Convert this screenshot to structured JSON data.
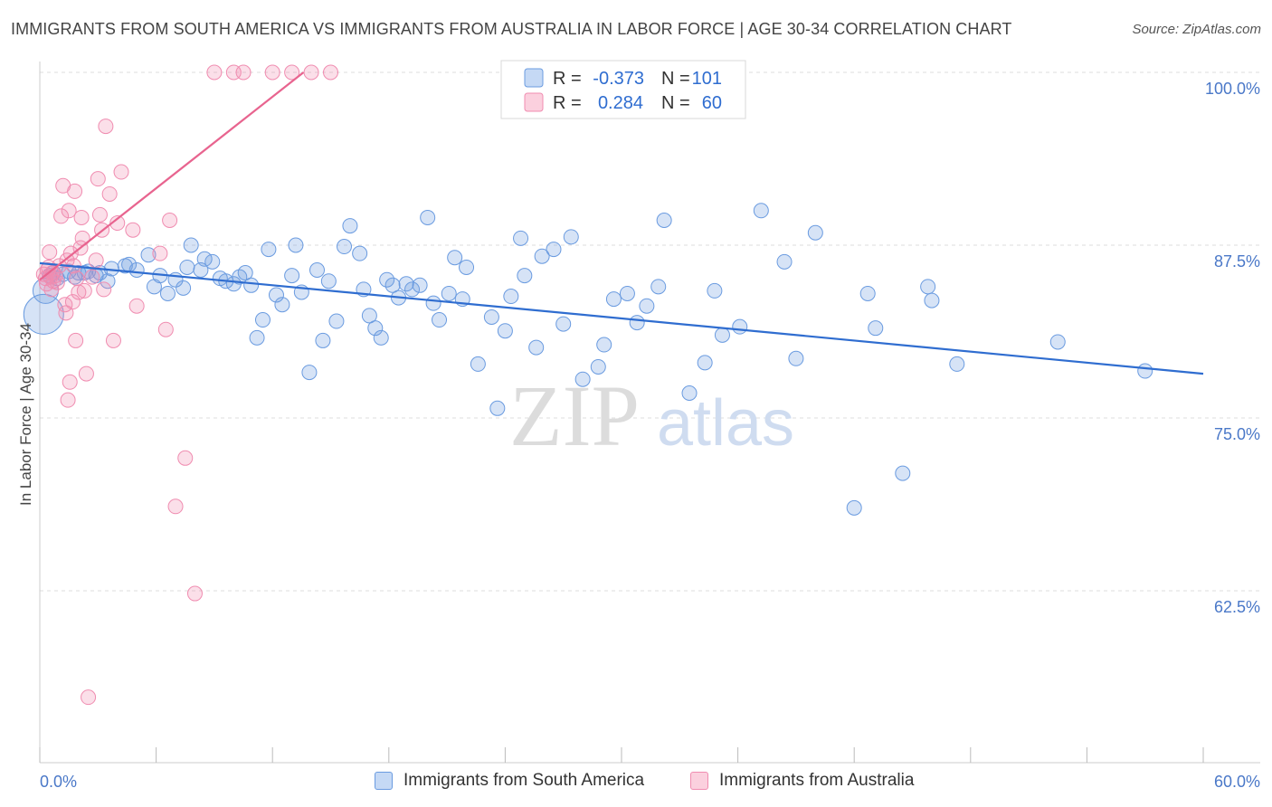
{
  "header": {
    "title": "IMMIGRANTS FROM SOUTH AMERICA VS IMMIGRANTS FROM AUSTRALIA IN LABOR FORCE | AGE 30-34 CORRELATION CHART",
    "source": "Source: ZipAtlas.com"
  },
  "watermark": {
    "zip": "ZIP",
    "atlas": "atlas"
  },
  "chart_data": {
    "type": "scatter",
    "ylabel": "In Labor Force | Age 30-34",
    "xlim": [
      0,
      60
    ],
    "ylim": [
      50,
      101
    ],
    "x_tick_labels": [
      "0.0%",
      "60.0%"
    ],
    "y_ticks": [
      {
        "value": 100,
        "label": "100.0%"
      },
      {
        "value": 87.5,
        "label": "87.5%"
      },
      {
        "value": 75,
        "label": "75.0%"
      },
      {
        "value": 62.5,
        "label": "62.5%"
      }
    ],
    "legend": {
      "r_label": "R =",
      "n_label": "N =",
      "entries": [
        {
          "r": "-0.373",
          "n": "101"
        },
        {
          "r": "0.284",
          "n": "60"
        }
      ]
    },
    "series": [
      {
        "name": "Immigrants from South America",
        "color": "#6a9be0",
        "line_color": "#2f6dd0",
        "trend": {
          "x0": 0,
          "y0": 86.2,
          "x1": 60,
          "y1": 78.2
        },
        "points": [
          [
            0.2,
            82.5,
            3
          ],
          [
            0.3,
            84.2,
            2
          ],
          [
            0.5,
            85.3,
            1
          ],
          [
            0.7,
            85.5,
            1
          ],
          [
            0.9,
            85.1,
            1
          ],
          [
            1.2,
            85.4,
            1
          ],
          [
            1.5,
            85.6,
            1
          ],
          [
            1.8,
            85.2,
            1
          ],
          [
            2.0,
            85.5,
            1
          ],
          [
            2.3,
            85.5,
            1
          ],
          [
            2.5,
            85.6,
            1
          ],
          [
            2.9,
            85.3,
            1
          ],
          [
            3.1,
            85.5,
            1
          ],
          [
            3.5,
            84.9,
            1
          ],
          [
            3.7,
            85.8,
            1
          ],
          [
            4.4,
            86.0,
            1
          ],
          [
            4.6,
            86.1,
            1
          ],
          [
            5.0,
            85.7,
            1
          ],
          [
            5.6,
            86.8,
            1
          ],
          [
            5.9,
            84.5,
            1
          ],
          [
            6.2,
            85.3,
            1
          ],
          [
            6.6,
            84.0,
            1
          ],
          [
            7.0,
            85.0,
            1
          ],
          [
            7.4,
            84.4,
            1
          ],
          [
            7.6,
            85.9,
            1
          ],
          [
            7.8,
            87.5,
            1
          ],
          [
            8.3,
            85.7,
            1
          ],
          [
            8.5,
            86.5,
            1
          ],
          [
            8.9,
            86.3,
            1
          ],
          [
            9.3,
            85.1,
            1
          ],
          [
            9.6,
            84.9,
            1
          ],
          [
            10.0,
            84.7,
            1
          ],
          [
            10.3,
            85.2,
            1
          ],
          [
            10.6,
            85.5,
            1
          ],
          [
            10.9,
            84.6,
            1
          ],
          [
            11.2,
            80.8,
            1
          ],
          [
            11.5,
            82.1,
            1
          ],
          [
            11.8,
            87.2,
            1
          ],
          [
            12.2,
            83.9,
            1
          ],
          [
            12.5,
            83.2,
            1
          ],
          [
            13.0,
            85.3,
            1
          ],
          [
            13.2,
            87.5,
            1
          ],
          [
            13.5,
            84.1,
            1
          ],
          [
            13.9,
            78.3,
            1
          ],
          [
            14.3,
            85.7,
            1
          ],
          [
            14.6,
            80.6,
            1
          ],
          [
            14.9,
            84.9,
            1
          ],
          [
            15.3,
            82.0,
            1
          ],
          [
            15.7,
            87.4,
            1
          ],
          [
            16.0,
            88.9,
            1
          ],
          [
            16.5,
            86.9,
            1
          ],
          [
            16.7,
            84.3,
            1
          ],
          [
            17.0,
            82.4,
            1
          ],
          [
            17.3,
            81.5,
            1
          ],
          [
            17.6,
            80.8,
            1
          ],
          [
            17.9,
            85.0,
            1
          ],
          [
            18.2,
            84.6,
            1
          ],
          [
            18.5,
            83.7,
            1
          ],
          [
            18.9,
            84.7,
            1
          ],
          [
            19.2,
            84.3,
            1
          ],
          [
            19.6,
            84.6,
            1
          ],
          [
            20.0,
            89.5,
            1
          ],
          [
            20.3,
            83.3,
            1
          ],
          [
            20.6,
            82.1,
            1
          ],
          [
            21.1,
            84.0,
            1
          ],
          [
            21.4,
            86.6,
            1
          ],
          [
            21.8,
            83.6,
            1
          ],
          [
            22.0,
            85.9,
            1
          ],
          [
            22.6,
            78.9,
            1
          ],
          [
            23.3,
            82.3,
            1
          ],
          [
            23.6,
            75.7,
            1
          ],
          [
            24.0,
            81.3,
            1
          ],
          [
            24.3,
            83.8,
            1
          ],
          [
            24.8,
            88.0,
            1
          ],
          [
            25.0,
            85.3,
            1
          ],
          [
            25.6,
            80.1,
            1
          ],
          [
            25.9,
            86.7,
            1
          ],
          [
            26.5,
            87.2,
            1
          ],
          [
            27.0,
            81.8,
            1
          ],
          [
            27.4,
            88.1,
            1
          ],
          [
            28.0,
            77.8,
            1
          ],
          [
            28.8,
            78.7,
            1
          ],
          [
            29.1,
            80.3,
            1
          ],
          [
            29.6,
            83.6,
            1
          ],
          [
            30.3,
            84.0,
            1
          ],
          [
            30.8,
            81.9,
            1
          ],
          [
            31.3,
            83.1,
            1
          ],
          [
            31.9,
            84.5,
            1
          ],
          [
            32.2,
            89.3,
            1
          ],
          [
            33.5,
            76.8,
            1
          ],
          [
            34.3,
            79.0,
            1
          ],
          [
            34.8,
            84.2,
            1
          ],
          [
            35.2,
            81.0,
            1
          ],
          [
            36.1,
            81.6,
            1
          ],
          [
            37.2,
            90.0,
            1
          ],
          [
            38.4,
            86.3,
            1
          ],
          [
            39.0,
            79.3,
            1
          ],
          [
            40.0,
            88.4,
            1
          ],
          [
            42.0,
            68.5,
            1
          ],
          [
            42.7,
            84.0,
            1
          ],
          [
            43.1,
            81.5,
            1
          ],
          [
            44.5,
            71.0,
            1
          ],
          [
            45.8,
            84.5,
            1
          ],
          [
            46.0,
            83.5,
            1
          ],
          [
            47.3,
            78.9,
            1
          ],
          [
            52.5,
            80.5,
            1
          ],
          [
            57.0,
            78.4,
            1
          ]
        ]
      },
      {
        "name": "Immigrants from Australia",
        "color": "#f08cb0",
        "line_color": "#e8648f",
        "trend": {
          "x0": 0,
          "y0": 85.0,
          "x1": 13.6,
          "y1": 100.0
        },
        "points": [
          [
            0.2,
            85.4,
            1
          ],
          [
            0.3,
            85.1,
            1
          ],
          [
            0.35,
            84.7,
            1
          ],
          [
            0.4,
            85.7,
            1
          ],
          [
            0.45,
            85.9,
            1
          ],
          [
            0.5,
            87.0,
            1
          ],
          [
            0.55,
            85.2,
            1
          ],
          [
            0.6,
            84.3,
            1
          ],
          [
            0.65,
            85.5,
            1
          ],
          [
            0.7,
            84.9,
            1
          ],
          [
            0.8,
            85.3,
            1
          ],
          [
            0.9,
            84.8,
            1
          ],
          [
            1.0,
            86.0,
            1
          ],
          [
            1.1,
            89.6,
            1
          ],
          [
            1.2,
            91.8,
            1
          ],
          [
            1.3,
            83.2,
            1
          ],
          [
            1.35,
            82.6,
            1
          ],
          [
            1.4,
            86.4,
            1
          ],
          [
            1.45,
            76.3,
            1
          ],
          [
            1.5,
            90.0,
            1
          ],
          [
            1.55,
            77.6,
            1
          ],
          [
            1.6,
            86.9,
            1
          ],
          [
            1.7,
            83.4,
            1
          ],
          [
            1.75,
            86.0,
            1
          ],
          [
            1.8,
            91.4,
            1
          ],
          [
            1.85,
            80.6,
            1
          ],
          [
            1.9,
            85.1,
            1
          ],
          [
            2.0,
            84.1,
            1
          ],
          [
            2.1,
            87.3,
            1
          ],
          [
            2.15,
            89.5,
            1
          ],
          [
            2.2,
            88.0,
            1
          ],
          [
            2.3,
            84.2,
            1
          ],
          [
            2.4,
            78.2,
            1
          ],
          [
            2.5,
            54.8,
            1
          ],
          [
            2.7,
            85.2,
            1
          ],
          [
            2.9,
            86.4,
            1
          ],
          [
            3.0,
            92.3,
            1
          ],
          [
            3.1,
            89.7,
            1
          ],
          [
            3.2,
            88.6,
            1
          ],
          [
            3.3,
            84.3,
            1
          ],
          [
            3.4,
            96.1,
            1
          ],
          [
            3.6,
            91.2,
            1
          ],
          [
            3.8,
            80.6,
            1
          ],
          [
            4.0,
            89.1,
            1
          ],
          [
            4.2,
            92.8,
            1
          ],
          [
            4.8,
            88.6,
            1
          ],
          [
            5.0,
            83.1,
            1
          ],
          [
            6.2,
            86.9,
            1
          ],
          [
            6.5,
            81.4,
            1
          ],
          [
            6.7,
            89.3,
            1
          ],
          [
            7.0,
            68.6,
            1
          ],
          [
            7.5,
            72.1,
            1
          ],
          [
            8.0,
            62.3,
            1
          ],
          [
            9.0,
            100.0,
            1
          ],
          [
            10.0,
            100.0,
            1
          ],
          [
            10.5,
            100.0,
            1
          ],
          [
            12.0,
            100.0,
            1
          ],
          [
            13.0,
            100.0,
            1
          ],
          [
            14.0,
            100.0,
            1
          ],
          [
            15.0,
            100.0,
            1
          ]
        ]
      }
    ]
  }
}
